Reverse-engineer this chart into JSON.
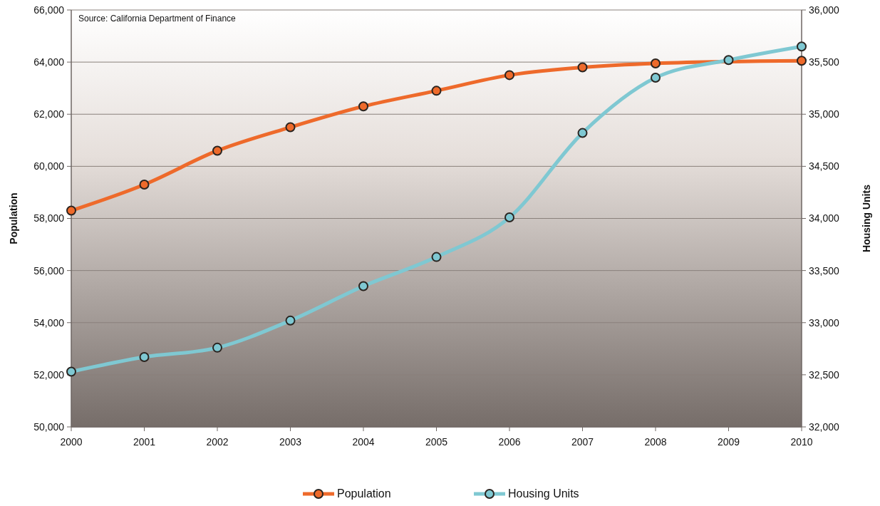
{
  "chart_data": {
    "type": "line",
    "categories": [
      "2000",
      "2001",
      "2002",
      "2003",
      "2004",
      "2005",
      "2006",
      "2007",
      "2008",
      "2009",
      "2010"
    ],
    "series": [
      {
        "name": "Population",
        "color": "#ee6a2b",
        "values": [
          58300,
          59300,
          60600,
          61500,
          62300,
          62900,
          63500,
          63800,
          63950,
          null,
          64050
        ]
      },
      {
        "name": "Housing Units",
        "color": "#7fc8d2",
        "axis": "y2",
        "values": [
          32530,
          32670,
          32760,
          33020,
          33350,
          33630,
          34010,
          34820,
          35350,
          35520,
          35650
        ]
      }
    ],
    "ylabel": "Population",
    "y2label": "Housing Units",
    "ylim": [
      50000,
      66000
    ],
    "yticks": [
      {
        "value": 50000,
        "label": "50,000"
      },
      {
        "value": 52000,
        "label": "52,000"
      },
      {
        "value": 54000,
        "label": "54,000"
      },
      {
        "value": 56000,
        "label": "56,000"
      },
      {
        "value": 58000,
        "label": "58,000"
      },
      {
        "value": 60000,
        "label": "60,000"
      },
      {
        "value": 62000,
        "label": "62,000"
      },
      {
        "value": 64000,
        "label": "64,000"
      },
      {
        "value": 66000,
        "label": "66,000"
      }
    ],
    "y2lim": [
      32000,
      36000
    ],
    "y2ticks": [
      {
        "value": 32000,
        "label": "32,000"
      },
      {
        "value": 32500,
        "label": "32,500"
      },
      {
        "value": 33000,
        "label": "33,000"
      },
      {
        "value": 33500,
        "label": "33,500"
      },
      {
        "value": 34000,
        "label": "34,000"
      },
      {
        "value": 34500,
        "label": "34,500"
      },
      {
        "value": 35000,
        "label": "35,000"
      },
      {
        "value": 35500,
        "label": "35,500"
      },
      {
        "value": 36000,
        "label": "36,000"
      }
    ],
    "annotations": [
      "Source: California Department of Finance"
    ],
    "grid": "y",
    "legend": "bottom",
    "marker": "circle",
    "line_style": "solid"
  }
}
